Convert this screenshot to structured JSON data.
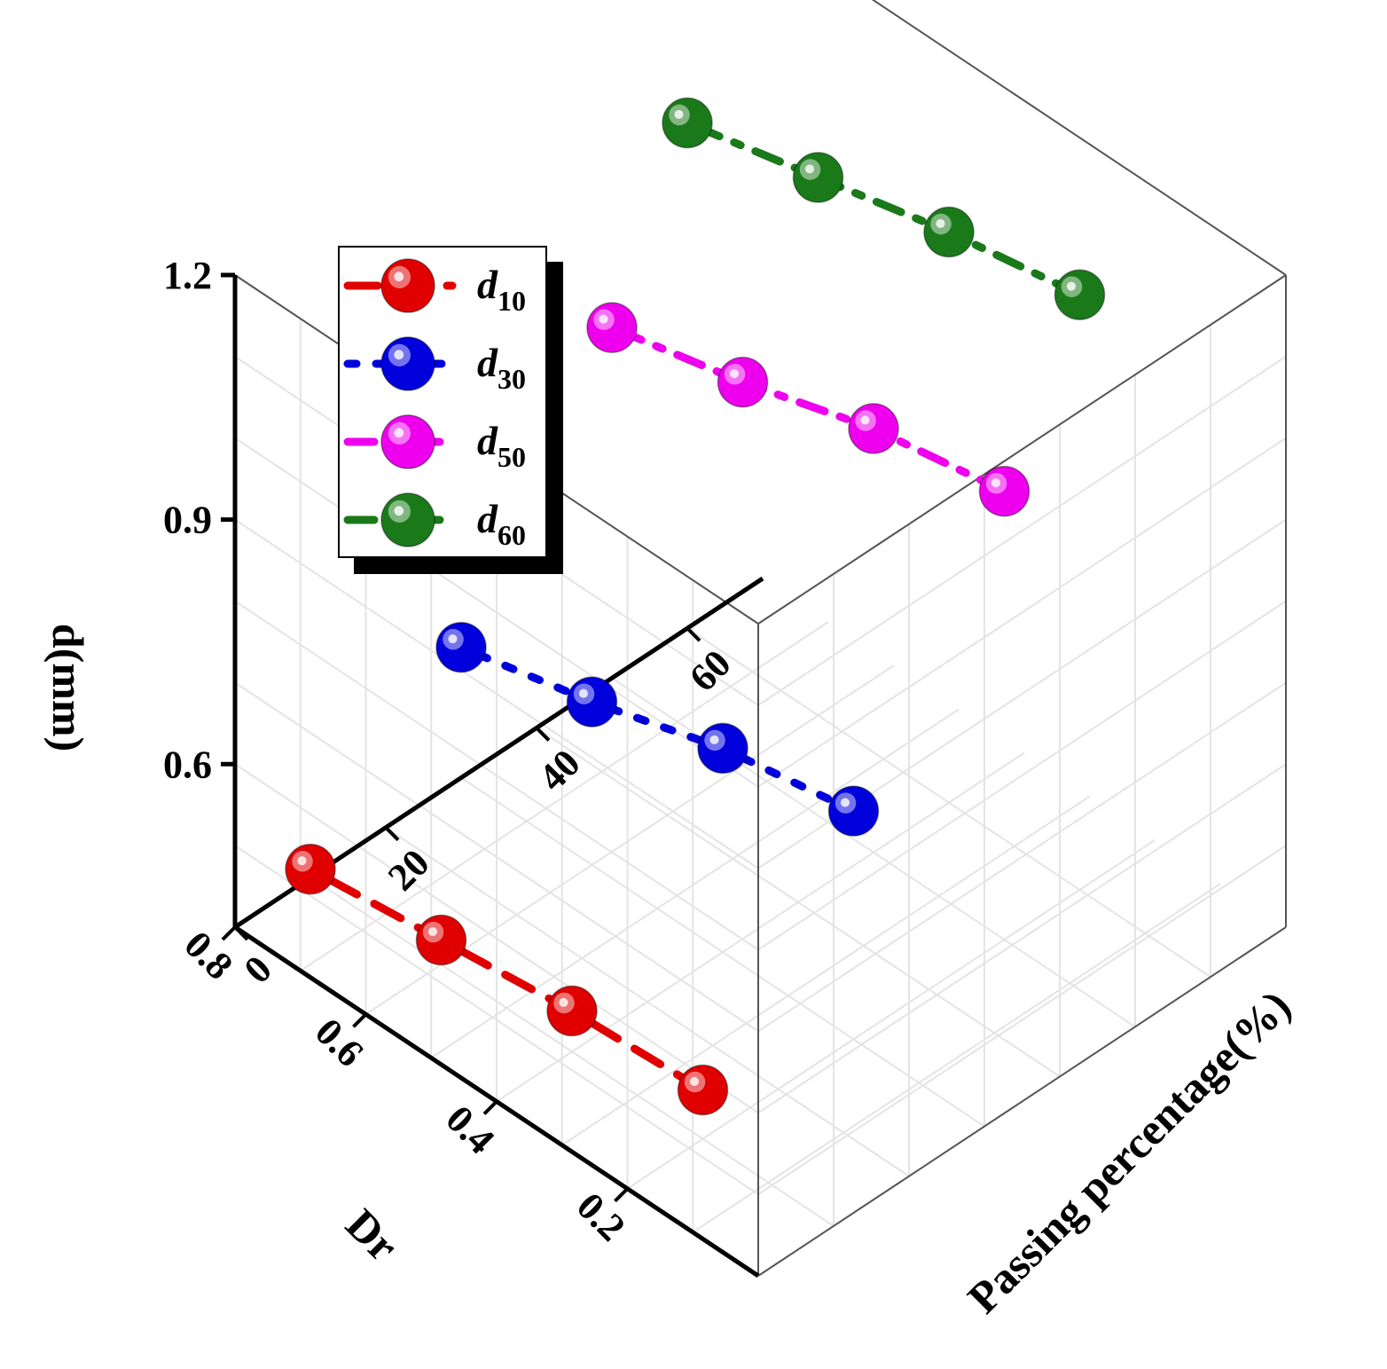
{
  "chart_data": {
    "type": "scatter",
    "projection": "3d",
    "title": "",
    "xlabel": "Dr",
    "ylabel": "Passing percentage(%)",
    "zlabel": "d(mm)",
    "xlim": [
      0.1,
      0.9
    ],
    "ylim": [
      0,
      70
    ],
    "zlim": [
      0.4,
      1.2
    ],
    "xticks": [
      "0.2",
      "0.4",
      "0.6",
      "0.8"
    ],
    "yticks": [
      "0",
      "20",
      "40",
      "60"
    ],
    "zticks": [
      "0.6",
      "0.9",
      "1.2"
    ],
    "grid": true,
    "legend_position": "top-left",
    "series": [
      {
        "name": "d10",
        "label_main": "d",
        "label_sub": "10",
        "color": "#e00000",
        "line_style": "dash",
        "passing": 10,
        "points": [
          {
            "dr": 0.2,
            "d": 0.46
          },
          {
            "dr": 0.4,
            "d": 0.45
          },
          {
            "dr": 0.6,
            "d": 0.43
          },
          {
            "dr": 0.8,
            "d": 0.41
          }
        ]
      },
      {
        "name": "d30",
        "label_main": "d",
        "label_sub": "30",
        "color": "#0000dd",
        "line_style": "dot",
        "passing": 30,
        "points": [
          {
            "dr": 0.2,
            "d": 0.68
          },
          {
            "dr": 0.4,
            "d": 0.65
          },
          {
            "dr": 0.6,
            "d": 0.6
          },
          {
            "dr": 0.8,
            "d": 0.56
          }
        ]
      },
      {
        "name": "d50",
        "label_main": "d",
        "label_sub": "50",
        "color": "#ee00ee",
        "line_style": "dashdot",
        "passing": 50,
        "points": [
          {
            "dr": 0.2,
            "d": 0.95
          },
          {
            "dr": 0.4,
            "d": 0.92
          },
          {
            "dr": 0.6,
            "d": 0.87
          },
          {
            "dr": 0.8,
            "d": 0.83
          }
        ]
      },
      {
        "name": "d60",
        "label_main": "d",
        "label_sub": "60",
        "color": "#1a7a1a",
        "line_style": "dashdot",
        "passing": 60,
        "points": [
          {
            "dr": 0.2,
            "d": 1.13
          },
          {
            "dr": 0.4,
            "d": 1.1
          },
          {
            "dr": 0.6,
            "d": 1.06
          },
          {
            "dr": 0.8,
            "d": 1.02
          }
        ]
      }
    ]
  }
}
